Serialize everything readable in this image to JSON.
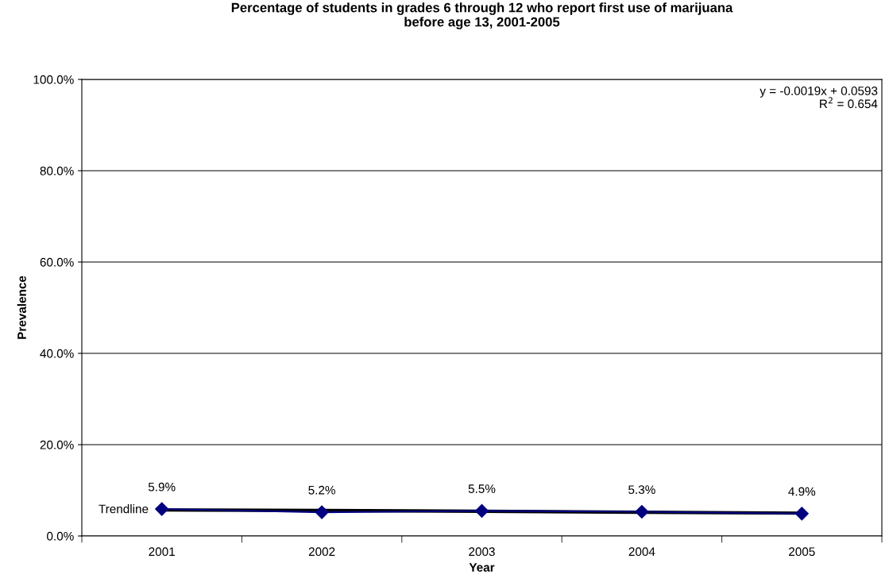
{
  "chart_data": {
    "type": "line",
    "title": "Percentage of students in grades 6 through 12 who report first use of marijuana\nbefore age 13, 2001-2005",
    "xlabel": "Year",
    "ylabel": "Prevalence",
    "categories": [
      "2001",
      "2002",
      "2003",
      "2004",
      "2005"
    ],
    "series": [
      {
        "color": "#000080",
        "values": [
          5.9,
          5.2,
          5.5,
          5.3,
          4.9
        ],
        "marker": "diamond",
        "value_labels": [
          "5.9%",
          "5.2%",
          "5.5%",
          "5.3%",
          "4.9%"
        ]
      },
      {
        "name": "Trendline",
        "color": "#000000",
        "values": [
          5.7,
          5.6,
          5.4,
          5.2,
          5.0
        ],
        "marker": "none"
      }
    ],
    "ylim": [
      0,
      100
    ],
    "yticks": [
      {
        "value": 0,
        "label": "0.0%"
      },
      {
        "value": 20,
        "label": "20.0%"
      },
      {
        "value": 40,
        "label": "40.0%"
      },
      {
        "value": 60,
        "label": "60.0%"
      },
      {
        "value": 80,
        "label": "80.0%"
      },
      {
        "value": 100,
        "label": "100.0%"
      }
    ],
    "grid": "y",
    "legend": false,
    "annotations": [
      "y = -0.0019x + 0.0593\nR$^{2}$ = 0.654"
    ]
  }
}
